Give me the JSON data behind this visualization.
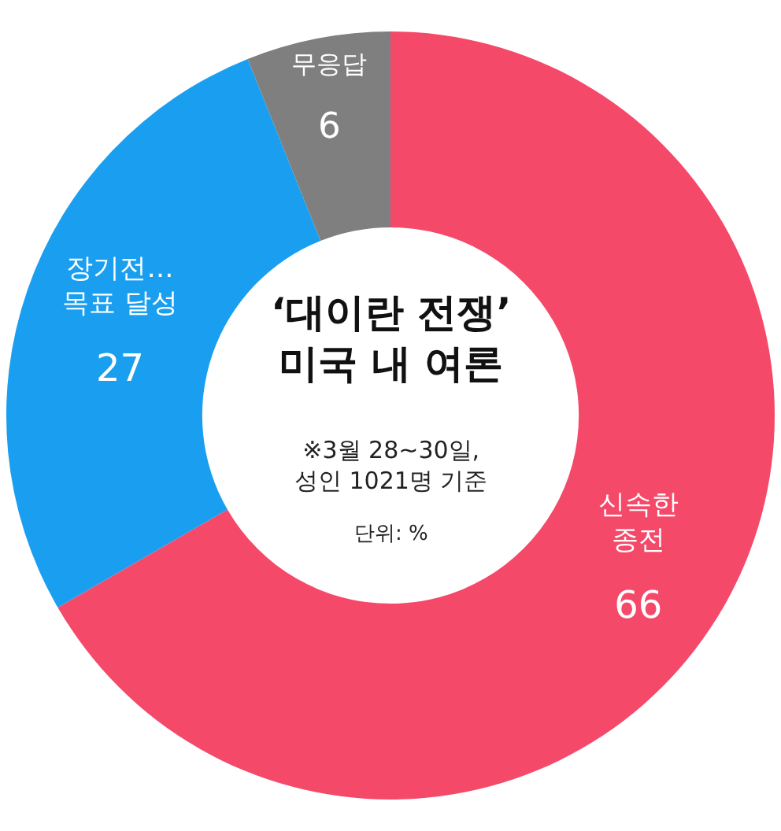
{
  "chart_data": {
    "type": "donut",
    "title": "‘대이란 전쟁’\n미국 내 여론",
    "subtitle": "※3월 28~30일,\n성인 1021명 기준",
    "annotations": [
      "단위: %"
    ],
    "categories": [
      "신속한\n종전",
      "장기전…\n목표 달성",
      "무응답"
    ],
    "values": [
      66,
      27,
      6
    ],
    "colors": [
      "#f5496a",
      "#1a9ff0",
      "#7f7f7f"
    ],
    "data_labels": true,
    "legend": false
  }
}
